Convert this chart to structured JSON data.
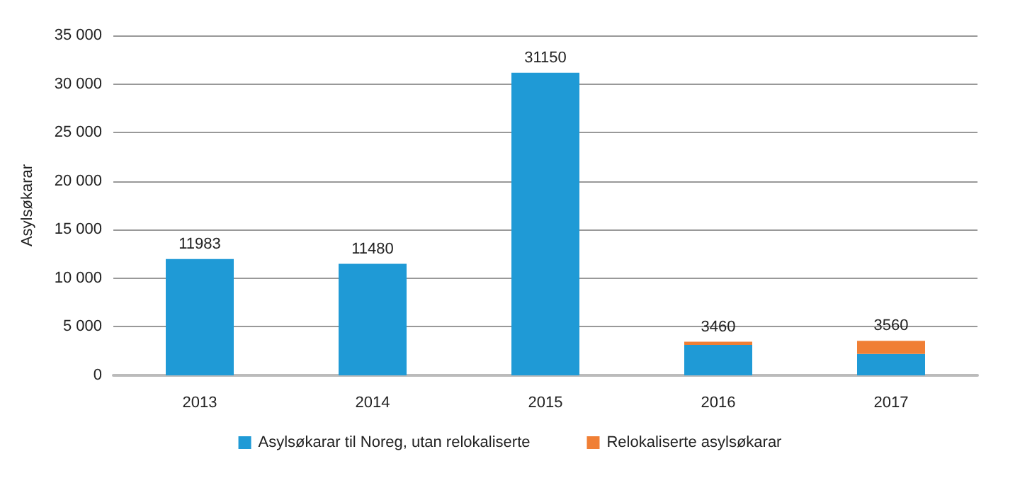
{
  "chart_data": {
    "type": "bar",
    "ylabel": "Asylsøkarar",
    "categories": [
      "2013",
      "2014",
      "2015",
      "2016",
      "2017"
    ],
    "series": [
      {
        "name": "Asylsøkarar til Noreg, utan relokaliserte",
        "color": "#1f9ad6",
        "values": [
          11983,
          11480,
          31150,
          3135,
          2200
        ]
      },
      {
        "name": "Relokaliserte asylsøkarar",
        "color": "#f07f35",
        "values": [
          0,
          0,
          0,
          325,
          1360
        ]
      }
    ],
    "stacked": true,
    "totals": [
      "11983",
      "11480",
      "31150",
      "3460",
      "3560"
    ],
    "ylim": [
      0,
      35000
    ],
    "yticks": [
      {
        "value": 0,
        "label": "0"
      },
      {
        "value": 5000,
        "label": "5 000"
      },
      {
        "value": 10000,
        "label": "10 000"
      },
      {
        "value": 15000,
        "label": "15 000"
      },
      {
        "value": 20000,
        "label": "20 000"
      },
      {
        "value": 25000,
        "label": "25 000"
      },
      {
        "value": 30000,
        "label": "30 000"
      },
      {
        "value": 35000,
        "label": "35 000"
      }
    ],
    "grid": "y",
    "legend": "bottom"
  }
}
